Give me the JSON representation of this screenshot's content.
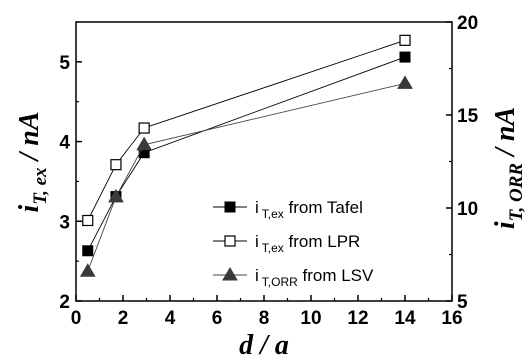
{
  "chart_data": {
    "type": "scatter",
    "x_axis": {
      "label_main": "d / a",
      "range": [
        0,
        16
      ],
      "ticks": [
        0,
        2,
        4,
        6,
        8,
        10,
        12,
        14,
        16
      ]
    },
    "y_left": {
      "label_main": "i",
      "label_sub": "T, ex",
      "label_unit": " / nA",
      "range": [
        2,
        5.5
      ],
      "ticks": [
        2,
        3,
        4,
        5
      ]
    },
    "y_right": {
      "label_main": "i",
      "label_sub": "T, ORR",
      "label_unit": " / nA",
      "range": [
        5,
        20
      ],
      "ticks": [
        5,
        10,
        15,
        20
      ]
    },
    "x": [
      0.5,
      1.7,
      2.9,
      14
    ],
    "series": [
      {
        "name": "i_T,ex from Tafel",
        "legend_main": "i",
        "legend_sub": "T,ex",
        "legend_rest": " from Tafel",
        "axis": "left",
        "marker": "square-filled",
        "values": [
          2.63,
          3.31,
          3.86,
          5.06
        ]
      },
      {
        "name": "i_T,ex from LPR",
        "legend_main": "i",
        "legend_sub": "T,ex",
        "legend_rest": " from LPR",
        "axis": "left",
        "marker": "square-open",
        "values": [
          3.01,
          3.71,
          4.17,
          5.27
        ]
      },
      {
        "name": "i_T,ORR from LSV",
        "legend_main": "i",
        "legend_sub": "T,ORR",
        "legend_rest": " from LSV",
        "axis": "right",
        "marker": "triangle-filled",
        "values": [
          6.6,
          10.6,
          13.4,
          16.7
        ]
      }
    ],
    "legend_position": "bottom-right",
    "grid": false
  }
}
